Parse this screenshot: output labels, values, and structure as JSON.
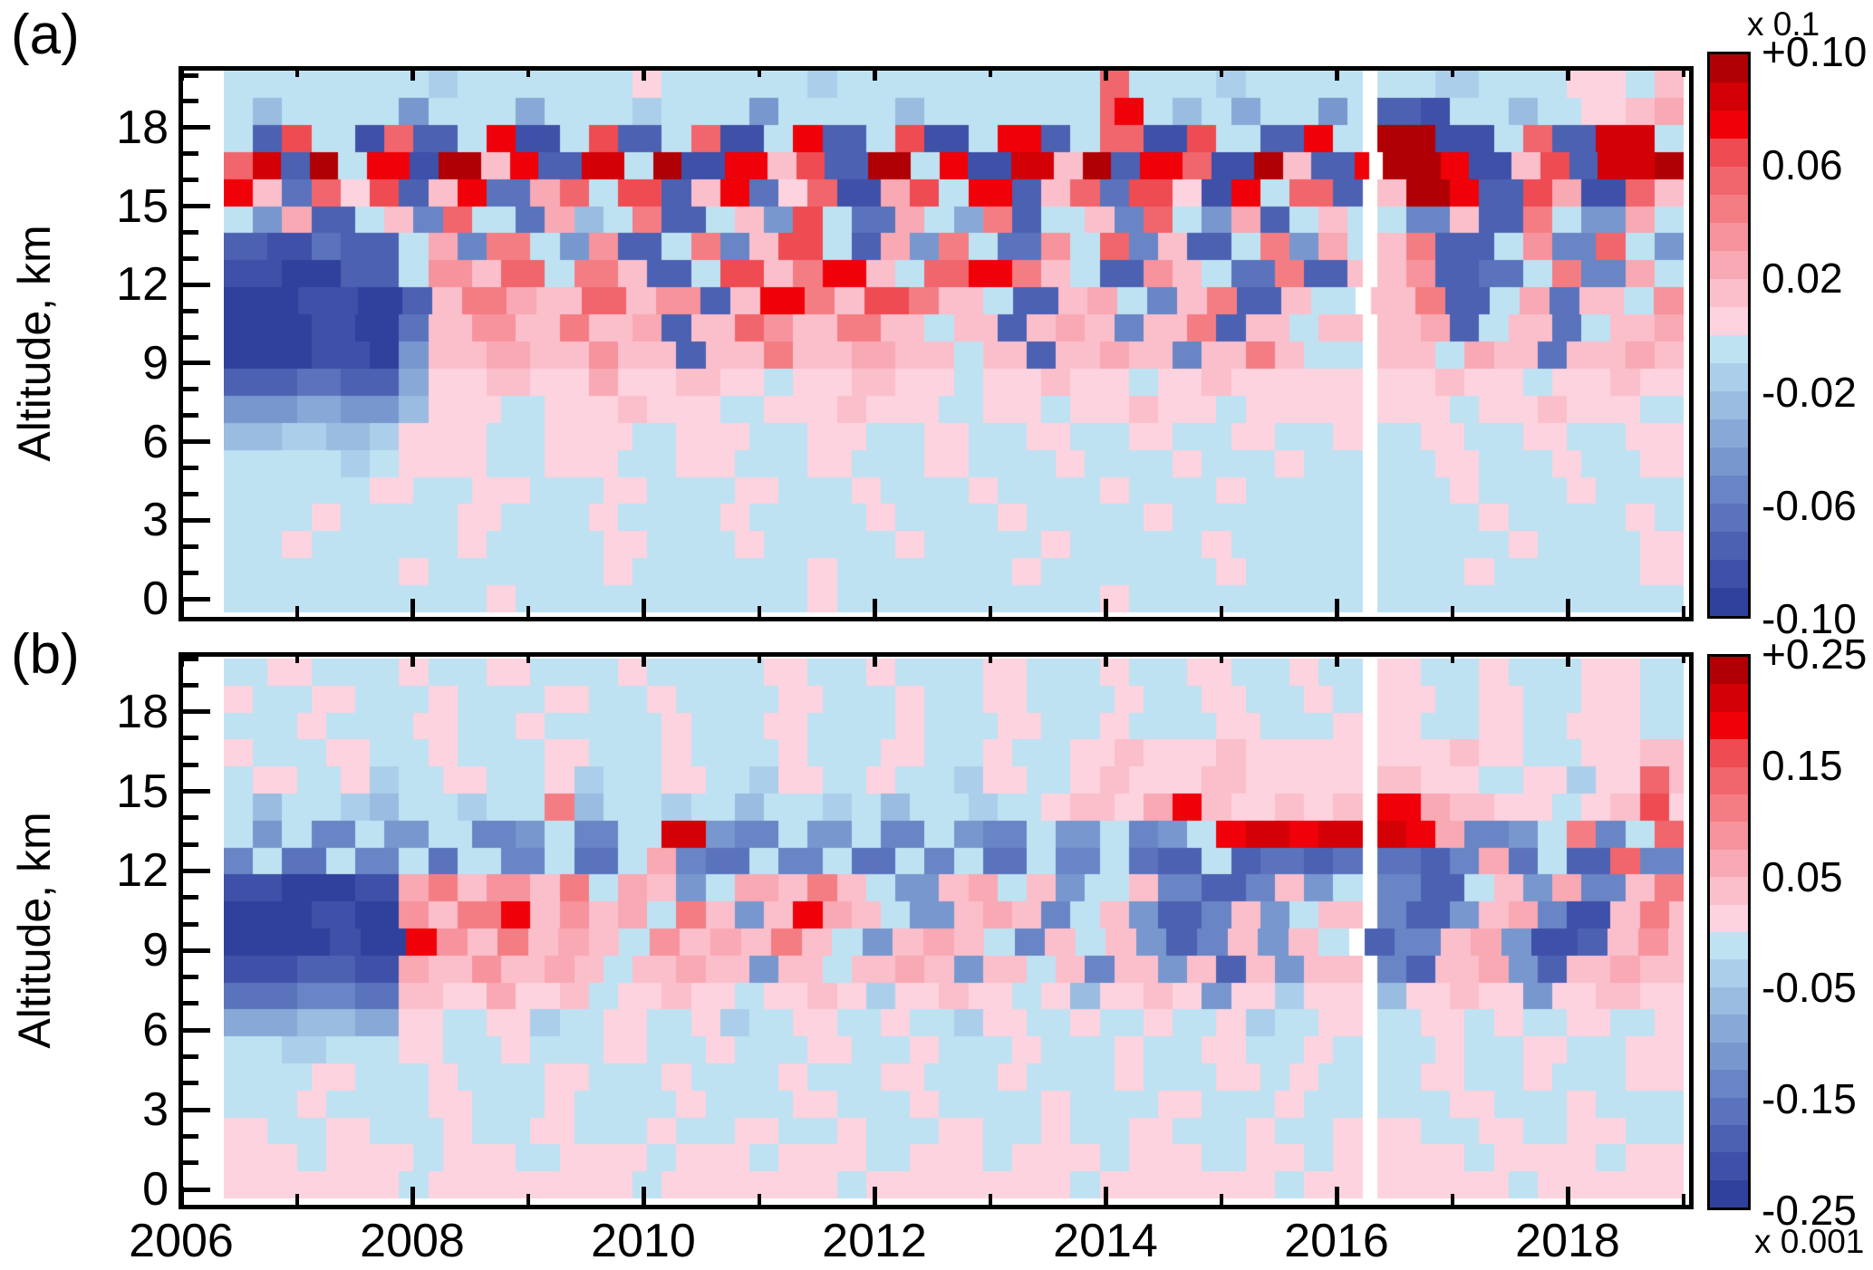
{
  "figure": {
    "panel_a_letter": "(a)",
    "panel_b_letter": "(b)",
    "y_axis_title": "Altitude, km",
    "background_color": "#ffffff",
    "axis_color": "#000000"
  },
  "palette": {
    "gap_color": "#ffffff",
    "levels_negative_to_positive": [
      "#30409d",
      "#3e50a8",
      "#4c61b2",
      "#5a73bc",
      "#6985c5",
      "#7897ce",
      "#88a9d7",
      "#99bce0",
      "#abcfea",
      "#bfe2f2",
      "#fcd3de",
      "#fabfcb",
      "#f8a9b3",
      "#f6939c",
      "#f47d84",
      "#f1656c",
      "#ee4b52",
      "#f00008",
      "#d30006",
      "#b00005"
    ]
  },
  "axes": {
    "x_major_tick_years": [
      2006,
      2008,
      2010,
      2012,
      2014,
      2016,
      2018
    ],
    "x_major_tick_labels": [
      "2006",
      "2008",
      "2010",
      "2012",
      "2014",
      "2016",
      "2018"
    ],
    "x_minor_tick_years": [
      2007,
      2009,
      2011,
      2013,
      2015,
      2017,
      2019
    ],
    "x_range_years": [
      2006.0,
      2019.07
    ],
    "y_major_ticks_km": [
      0,
      3,
      6,
      9,
      12,
      15,
      18
    ],
    "y_major_tick_labels": [
      "0",
      "3",
      "6",
      "9",
      "12",
      "15",
      "18"
    ],
    "y_minor_step_km": 1,
    "y_range_km": [
      0,
      20.2
    ]
  },
  "chart_data": [
    {
      "type": "heatmap",
      "panel": "a",
      "ylabel": "Altitude, km",
      "xlabel": "",
      "value_multiplier": "x 0.1",
      "colorbar": {
        "max": 0.1,
        "min": -0.1,
        "n_levels": 20,
        "tick_labels": [
          "+0.10",
          "0.06",
          "0.02",
          "-0.02",
          "-0.06",
          "-0.10"
        ],
        "multiplier_top": "x 0.1"
      },
      "data_time_start": 2006.5,
      "data_time_step_years": 0.125,
      "gap_time": 2016.25,
      "rows_order": "top row = 19-20 km, bottom row = 0-1 km",
      "encoding": "chars 0-9 = blue levels (0 darkest), a-j = pink/red levels (j darkest), x = no-data gap",
      "grid_rle": [
        "9*14,8*2,9*12,a*2,9*10,8*2,9*18,f*2,9*6,8*2,9*8,x*1,9*4,8*3,9*6,a*4,9*2,b*2",
        "9*2,7*2,9*8,5*2,9*6,6*2,9*6,8*2,9*6,5*2,9*8,7*2,9*12,f*1,h*2,9*2,7*2,9*2,6*2,9*4,5*2,9*1,x*1,2*3,1*2,9*4,7*2,9*3,a*3,b*2,c*2",
        "9*2,2*2,g*2,9*3,1*2,f*2,2*3,9*2,h*2,1*3,9*2,g*2,2*3,9*2,f*2,1*3,9*2,h*2,2*3,9*2,g*2,1*3,9*2,h*3,2*2,9*2,f*3,1*3,g*2,9*3,2*3,h*2,9*2,x*1,j*4,1*4,9*2,f*2,2*3,i*4,9*2",
        "f*2,i*2,2*2,j*2,9*2,h*3,1*2,j*3,b*2,h*2,2*3,i*3,9*2,j*2,1*3,h*3,b*2,g*2,2*3,j*3,9*2,h*2,1*3,i*3,b*2,j*2,2*2,h*3,f*2,1*3,j*2,b*2,2*3,h*1,x*1,j*4,h*2,1*3,b*2,g*2,2*2,i*4,j*2",
        "h*2,b*2,3*2,f*2,a*2,g*2,2*2,b*2,h*2,3*3,c*2,f*2,9*2,g*3,2*2,b*2,h*2,3*2,a*2,f*2,1*3,c*2,g*2,9*2,h*3,2*2,b*2,f*2,3*2,g*3,a*2,1*2,h*2,9*2,f*3,2*2,x*1,b*2,j*3,h*2,2*3,g*2,c*2,1*3,f*2,b*2",
        "9*2,5*2,c*2,2*3,9*2,b*2,4*2,f*2,9*3,3*2,c*2,7*2,9*2,e*2,2*3,9*2,b*2,5*2,g*2,9*2,3*3,c*2,9*2,6*2,e*2,2*2,9*3,b*2,4*2,f*2,9*2,5*2,c*2,2*2,9*2,b*2,9*1,x*1,9*2,4*3,b*2,2*3,e*2,9*2,5*3,c*2,9*2",
        "2*3,1*3,3*2,2*4,9*2,c*2,4*2,e*3,9*2,5*2,d*2,2*3,9*2,e*2,4*2,b*2,g*3,9*2,2*2,c*2,5*2,e*2,9*2,3*3,d*2,9*2,f*2,4*2,b*2,2*3,9*2,e*2,5*2,c*2,9*1,x*1,b*2,e*2,2*4,9*2,d*2,4*3,f*2,9*2,5*2",
        "1*4,0*4,2*4,9*2,d*3,b*2,f*3,9*2,e*3,b*2,2*3,9*2,g*3,b*2,e*2,h*3,b*2,9*2,f*3,h*3,e*2,b*2,9*2,2*3,d*2,b*2,9*2,3*3,e*2,2*3,b*1,x*1,b*2,d*2,2*3,3*3,9*2,e*2,4*3,c*2,9*2",
        "0*5,1*4,0*3,2*2,b*2,e*3,c*2,b*3,f*3,b*2,d*3,2*2,b*2,h*3,e*2,b*2,g*3,e*2,b*3,9*2,2*3,b*2,c*2,9*2,4*2,b*2,e*2,2*3,b*2,9*3,x*1,b*3,e*2,2*3,9*2,c*2,3*2,b*3,9*2,d*2",
        "0*6,1*3,0*3,3*2,b*3,d*3,b*3,e*2,b*3,c*2,2*2,b*3,f*2,d*2,b*3,e*3,b*3,9*2,b*3,2*2,b*2,c*2,b*2,4*2,b*3,e*2,2*2,b*3,9*2,b*3,x*1,b*3,c*2,2*2,9*2,b*3,3*2,9*2,b*3,c*2",
        "0*6,1*4,0*2,5*2,b*4,c*3,b*4,d*2,b*4,2*2,b*4,e*2,b*4,c*3,b*4,9*2,b*3,2*2,b*3,c*2,b*3,4*2,b*3,e*2,b*2,9*4,x*1,b*4,9*2,c*2,b*3,3*2,b*4,c*2,b*2",
        "2*5,3*3,2*4,6*2,a*4,b*3,a*4,c*2,a*4,b*3,a*3,9*2,a*4,b*3,a*4,9*2,a*4,b*2,a*4,9*2,a*3,b*2,a*3,a*6,x*1,a*4,b*2,a*4,9*2,a*4,b*2,a*3",
        "5*5,6*3,5*4,7*2,a*5,9*3,a*5,b*2,a*5,9*3,a*5,b*2,a*5,9*3,a*4,9*2,a*4,b*2,a*4,9*2,a*3,a*5,x*1,a*5,9*2,a*4,b*2,a*5,9*3",
        "7*4,8*3,7*3,8*2,a*6,9*4,a*6,9*3,a*5,9*4,a*4,9*4,a*3,9*4,a*3,9*4,a*3,9*4,a*3,9*4,a*2,x*1,9*3,a*3,9*4,a*3,9*4,a*4",
        "9*8,8*2,9*2,a*6,9*4,a*5,9*4,a*4,9*5,a*3,9*5,a*3,9*6,a*2,9*6,a*2,9*5,a*2,9*4,x*1,9*4,a*3,9*5,a*2,9*4,a*3",
        "9*10,a*3,9*4,a*4,9*5,a*3,9*6,a*3,9*5,a*2,9*6,a*2,9*7,a*2,9*6,a*2,9*8,x*1,9*5,a*2,9*6,a*2,9*6",
        "9*6,a*2,9*8,a*3,9*6,a*2,9*7,a*2,9*8,a*2,9*7,a*2,9*8,a*2,9*13,x*1,9*7,a*2,9*8,a*2,9*2",
        "9*4,a*2,9*10,a*2,9*8,a*3,9*6,a*2,9*9,a*2,9*8,a*2,9*9,a*2,9*9,x*1,9*9,a*2,9*7,a*3",
        "9*12,a*2,9*12,a*2,9*12,a*2,9*12,a*2,9*12,a*2,9*8,x*1,9*6,a*2,9*10,a*3",
        "9*18,a*2,9*20,a*2,9*18,a*2,9*16,x*1,9*21"
      ]
    },
    {
      "type": "heatmap",
      "panel": "b",
      "ylabel": "Altitude, km",
      "xlabel": "",
      "value_multiplier": "x 0.001",
      "colorbar": {
        "max": 0.25,
        "min": -0.25,
        "n_levels": 20,
        "tick_labels": [
          "+0.25",
          "0.15",
          "0.05",
          "-0.05",
          "-0.15",
          "-0.25"
        ],
        "multiplier_bottom": "x 0.001"
      },
      "data_time_start": 2006.5,
      "data_time_step_years": 0.125,
      "gap_time": 2016.25,
      "rows_order": "top row = 19-20 km, bottom row = 0-1 km",
      "encoding": "chars 0-9 = blue levels (0 darkest), a-j = pink/red levels (j darkest), x = no-data gap",
      "grid_rle": [
        "9*3,a*3,9*6,a*2,9*4,a*3,9*6,a*2,9*8,a*3,9*4,a*2,9*6,a*3,9*5,a*2,9*4,a*3,9*4,a*2,9*3,x*1,a*3,9*4,a*2,9*5,a*4,9*3",
        "a*2,9*4,a*3,9*5,a*2,9*6,a*3,9*4,a*2,9*7,a*3,9*5,a*2,9*4,a*3,9*6,a*2,9*4,a*3,9*4,a*2,9*2,x*1,a*4,9*3,a*3,9*4,a*4,9*3",
        "9*5,a*2,9*6,a*3,9*4,a*2,9*8,a*2,9*5,a*3,9*6,a*2,9*5,a*3,9*4,a*2,9*6,a*3,9*5,a*2,x*1,a*3,9*4,a*3,9*3,a*5,9*3",
        "a*2,9*5,a*3,9*4,a*2,9*6,a*3,9*5,a*2,9*6,a*2,9*5,a*3,9*4,a*2,9*4,a*3,b*2,a*5,b*2,a*4,a*4,x*1,a*5,b*2,a*3,9*4,a*4,b*3",
        "9*2,a*3,9*3,a*2,8*2,9*3,a*3,9*4,a*2,8*2,9*4,a*3,9*3,8*2,a*3,9*3,a*2,9*4,8*2,a*3,9*3,a*2,b*2,a*5,b*3,a*3,a*5,x*1,b*3,a*4,9*3,a*3,8*2,a*3,f*2,b*1",
        "9*2,7*2,9*4,8*2,7*2,9*4,8*2,9*4,e*2,7*2,9*4,8*2,9*3,7*2,9*4,8*2,9*2,7*2,9*4,8*2,9*3,a*2,b*3,a*2,c*2,h*2,b*2,a*3,b*2,a*2,b*2,x*1,h*3,c*2,b*3,a*4,9*2,a*2,b*2,g*2,a*1",
        "9*2,5*2,9*2,4*3,9*2,5*3,9*3,4*3,5*2,9*2,4*3,9*3,i*3,5*2,4*3,9*2,5*3,9*2,4*3,9*2,5*2,4*3,9*2,5*3,9*2,4*2,5*2,9*2,h*2,i*3,h*2,i*3,x*1,i*2,h*2,c*2,4*3,5*2,9*2,e*2,4*2,9*2,f*2",
        "4*2,9*2,3*3,9*2,4*3,9*2,3*2,9*3,4*3,9*2,3*3,9*2,c*2,4*2,3*3,9*2,4*3,9*2,3*3,9*2,4*2,9*2,3*3,9*2,4*3,9*2,3*2,2*3,9*2,2*2,3*3,2*2,3*2,x*1,3*3,2*2,4*2,c*2,3*2,9*2,2*3,f*2,4*3",
        "1*4,0*5,1*3,c*2,e*2,b*2,d*3,b*2,e*2,9*2,c*2,b*2,5*2,9*2,c*3,b*2,e*2,b*2,9*2,5*3,b*2,c*2,9*2,b*2,5*2,9*3,b*2,4*3,2*3,4*2,b*2,5*2,9*2,x*1,4*3,2*3,9*2,b*2,5*2,c*2,4*3,b*2,e*2",
        "0*6,1*3,0*3,d*2,b*2,e*3,h*2,b*2,d*2,b*2,c*2,9*2,e*2,b*2,5*2,b*2,h*2,c*2,b*2,9*2,5*3,b*2,c*2,b*2,4*2,9*2,b*2,5*2,2*3,4*2,b*2,5*2,9*2,b*3,x*1,4*2,2*3,5*2,b*2,c*2,4*2,1*3,b*2,e*2,b*1",
        "0*7,1*2,0*3,h*2,d*2,b*2,e*2,b*2,c*2,b*2,9*2,d*2,b*2,c*2,b*2,e*2,b*2,9*2,5*2,b*2,c*2,b*2,9*2,4*2,b*2,9*2,b*2,5*2,2*2,4*2,b*2,5*2,b*2,9*2,x*1,2*2,4*3,b*2,c*2,5*2,1*3,2*2,b*2,d*2,b*1",
        "1*5,2*4,1*3,c*2,b*3,d*2,b*3,c*2,b*2,9*2,b*3,c*2,b*3,5*2,b*3,9*2,b*3,c*2,b*2,5*2,b*3,9*2,b*2,4*2,b*3,5*2,b*2,2*2,b*2,5*2,b*4,x*1,4*2,2*2,b*3,c*2,5*2,2*2,b*3,c*2,b*3",
        "3*5,4*4,3*3,b*3,a*3,c*2,a*3,b*2,9*2,a*3,b*2,a*3,9*2,a*3,b*2,a*2,8*2,a*3,b*2,a*3,9*2,a*2,7*2,a*3,b*2,a*2,5*2,a*3,8*2,a*4,x*1,7*2,a*3,b*2,a*3,5*2,a*3,b*3,a*3",
        "6*5,7*4,6*3,a*3,9*3,a*3,8*2,9*3,a*3,9*3,a*2,8*2,9*3,a*3,9*3,a*2,9*3,8*2,a*3,9*3,a*2,9*3,a*2,9*3,a*2,8*2,9*3,a*3,x*1,9*3,a*3,9*2,a*2,9*3,a*3,9*3,a*2",
        "9*4,8*3,9*5,a*3,9*4,a*2,9*5,a*3,9*4,a*2,9*5,a*3,9*4,a*2,9*5,a*2,9*5,a*2,9*4,a*3,9*4,a*2,9*2,x*1,9*4,a*2,9*4,a*3,9*4,a*4",
        "9*6,a*3,9*5,a*2,9*6,a*3,9*5,a*2,9*6,a*2,9*5,a*3,9*5,a*2,9*6,a*2,9*5,a*3,9*2,a*2,9*3,x*1,9*3,a*3,9*4,a*2,9*5,a*4",
        "9*5,a*2,9*7,a*3,9*5,a*2,9*7,a*2,9*6,a*3,9*5,a*2,9*7,a*2,9*6,a*3,9*5,a*2,9*4,x*1,9*5,a*3,9*5,a*2,9*6",
        "a*3,9*4,a*3,9*5,a*2,9*4,a*3,9*5,a*2,9*4,a*3,9*4,a*2,9*5,a*3,9*4,a*2,9*4,a*3,9*5,a*2,9*4,a*2,x*1,a*3,9*4,a*3,9*3,a*4,9*4",
        "a*5,9*2,a*6,9*2,a*5,9*3,a*6,9*2,a*5,9*2,a*6,9*3,a*5,9*2,a*6,9*2,a*5,9*3,a*4,9*2,a*2,x*1,a*6,9*2,a*7,9*2,a*4",
        "a*12,9*2,a*14,9*2,a*12,9*2,a*14,9*2,a*12,9*2,a*4,x*1,a*9,9*2,a*10"
      ]
    }
  ]
}
